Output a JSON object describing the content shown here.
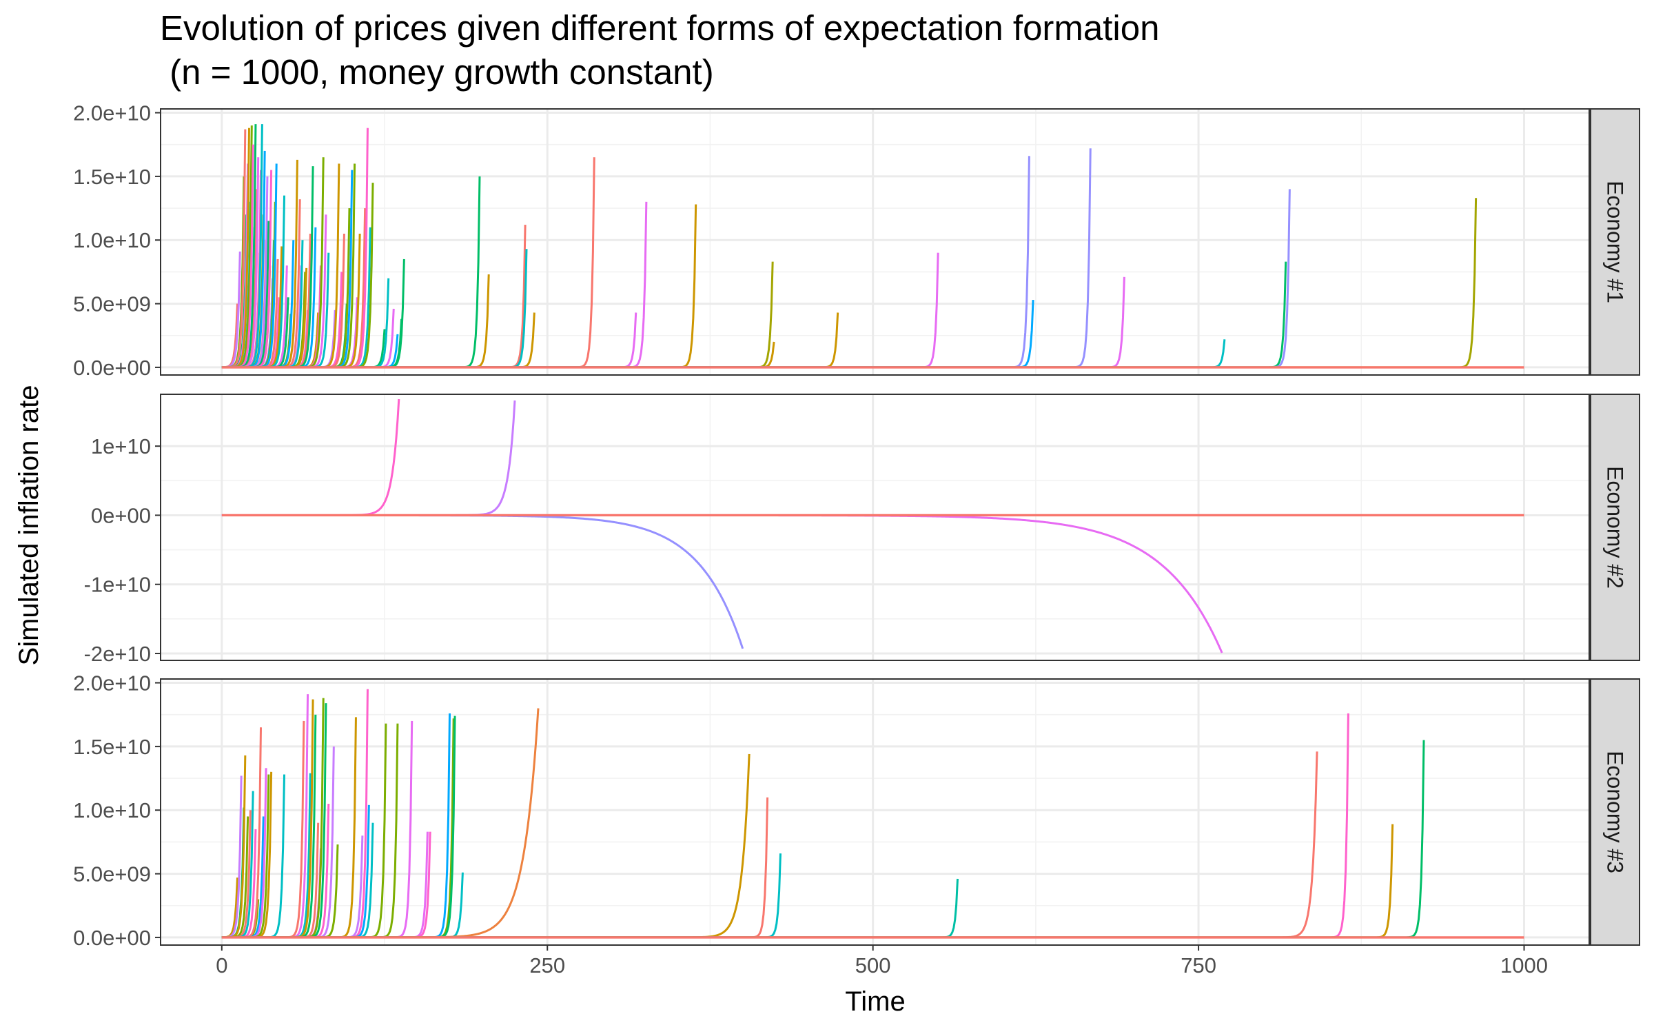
{
  "chart_data": {
    "type": "line",
    "title": "Evolution of prices given different forms of expectation formation",
    "subtitle": " (n = 1000, money growth constant)",
    "xlabel": "Time",
    "ylabel": "Simulated inflation rate",
    "xlim": [
      -47,
      1050
    ],
    "x_ticks": [
      0,
      250,
      500,
      750,
      1000
    ],
    "x_tick_labels": [
      "0",
      "250",
      "500",
      "750",
      "1000"
    ],
    "grid": true,
    "legend": "none",
    "facets": [
      {
        "label": "Economy #1",
        "ylim": [
          -600000000.0,
          20300000000.0
        ],
        "y_ticks": [
          0,
          5000000000.0,
          10000000000.0,
          15000000000.0,
          20000000000.0
        ],
        "y_tick_labels": [
          "0.0e+00",
          "5.0e+09",
          "1.0e+10",
          "1.5e+10",
          "2.0e+10"
        ],
        "spikes": [
          {
            "x": 12,
            "peak": 5000000000.0,
            "color": "#F8766D"
          },
          {
            "x": 14,
            "peak": 9100000000.0,
            "color": "#C77CFF"
          },
          {
            "x": 16,
            "peak": 8000000000.0,
            "color": "#00A9FF"
          },
          {
            "x": 17,
            "peak": 15000000000.0,
            "color": "#7CAE00"
          },
          {
            "x": 18,
            "peak": 18700000000.0,
            "color": "#F8766D"
          },
          {
            "x": 19,
            "peak": 12000000000.0,
            "color": "#00BE67"
          },
          {
            "x": 20,
            "peak": 16000000000.0,
            "color": "#E76BF3"
          },
          {
            "x": 21,
            "peak": 18800000000.0,
            "color": "#CD9600"
          },
          {
            "x": 22,
            "peak": 13000000000.0,
            "color": "#00BFC4"
          },
          {
            "x": 23,
            "peak": 19000000000.0,
            "color": "#7CAE00"
          },
          {
            "x": 24,
            "peak": 17500000000.0,
            "color": "#FF61CC"
          },
          {
            "x": 25,
            "peak": 11000000000.0,
            "color": "#00A9FF"
          },
          {
            "x": 26,
            "peak": 19100000000.0,
            "color": "#00BE67"
          },
          {
            "x": 27,
            "peak": 14000000000.0,
            "color": "#F8766D"
          },
          {
            "x": 28,
            "peak": 16500000000.0,
            "color": "#E76BF3"
          },
          {
            "x": 29,
            "peak": 9000000000.0,
            "color": "#CD9600"
          },
          {
            "x": 30,
            "peak": 15500000000.0,
            "color": "#FF61CC"
          },
          {
            "x": 31,
            "peak": 19100000000.0,
            "color": "#00BFC4"
          },
          {
            "x": 32,
            "peak": 12000000000.0,
            "color": "#7CAE00"
          },
          {
            "x": 33,
            "peak": 17000000000.0,
            "color": "#00A9FF"
          },
          {
            "x": 34,
            "peak": 10000000000.0,
            "color": "#F8766D"
          },
          {
            "x": 35,
            "peak": 15000000000.0,
            "color": "#C77CFF"
          },
          {
            "x": 36,
            "peak": 11500000000.0,
            "color": "#00BE67"
          },
          {
            "x": 37,
            "peak": 8000000000.0,
            "color": "#CD9600"
          },
          {
            "x": 38,
            "peak": 15500000000.0,
            "color": "#FF61CC"
          },
          {
            "x": 39,
            "peak": 7000000000.0,
            "color": "#E76BF3"
          },
          {
            "x": 40,
            "peak": 10000000000.0,
            "color": "#00BFC4"
          },
          {
            "x": 41,
            "peak": 13000000000.0,
            "color": "#7CAE00"
          },
          {
            "x": 42,
            "peak": 16000000000.0,
            "color": "#00A9FF"
          },
          {
            "x": 43,
            "peak": 8500000000.0,
            "color": "#F8766D"
          },
          {
            "x": 44,
            "peak": 5500000000.0,
            "color": "#FF61CC"
          },
          {
            "x": 46,
            "peak": 9500000000.0,
            "color": "#CD9600"
          },
          {
            "x": 48,
            "peak": 13500000000.0,
            "color": "#00BFC4"
          },
          {
            "x": 50,
            "peak": 8000000000.0,
            "color": "#E76BF3"
          },
          {
            "x": 51,
            "peak": 5500000000.0,
            "color": "#00BE67"
          },
          {
            "x": 53,
            "peak": 4200000000.0,
            "color": "#7CAE00"
          },
          {
            "x": 55,
            "peak": 10000000000.0,
            "color": "#00A9FF"
          },
          {
            "x": 56,
            "peak": 4500000000.0,
            "color": "#FF61CC"
          },
          {
            "x": 58,
            "peak": 16300000000.0,
            "color": "#CD9600"
          },
          {
            "x": 60,
            "peak": 13200000000.0,
            "color": "#F8766D"
          },
          {
            "x": 61,
            "peak": 8000000000.0,
            "color": "#C77CFF"
          },
          {
            "x": 62,
            "peak": 10000000000.0,
            "color": "#00BFC4"
          },
          {
            "x": 64,
            "peak": 7500000000.0,
            "color": "#7CAE00"
          },
          {
            "x": 65,
            "peak": 7800000000.0,
            "color": "#CD9600"
          },
          {
            "x": 66,
            "peak": 4500000000.0,
            "color": "#E76BF3"
          },
          {
            "x": 68,
            "peak": 10500000000.0,
            "color": "#F8766D"
          },
          {
            "x": 70,
            "peak": 15800000000.0,
            "color": "#00BE67"
          },
          {
            "x": 72,
            "peak": 11000000000.0,
            "color": "#00A9FF"
          },
          {
            "x": 74,
            "peak": 4300000000.0,
            "color": "#CD9600"
          },
          {
            "x": 76,
            "peak": 8000000000.0,
            "color": "#FF61CC"
          },
          {
            "x": 78,
            "peak": 16500000000.0,
            "color": "#7CAE00"
          },
          {
            "x": 80,
            "peak": 12000000000.0,
            "color": "#E76BF3"
          },
          {
            "x": 82,
            "peak": 9000000000.0,
            "color": "#00BFC4"
          },
          {
            "x": 87,
            "peak": 4500000000.0,
            "color": "#C77CFF"
          },
          {
            "x": 90,
            "peak": 16000000000.0,
            "color": "#CD9600"
          },
          {
            "x": 92,
            "peak": 7500000000.0,
            "color": "#FF61CC"
          },
          {
            "x": 94,
            "peak": 10500000000.0,
            "color": "#F8766D"
          },
          {
            "x": 96,
            "peak": 5000000000.0,
            "color": "#00BE67"
          },
          {
            "x": 98,
            "peak": 12500000000.0,
            "color": "#7CAE00"
          },
          {
            "x": 100,
            "peak": 15500000000.0,
            "color": "#00A9FF"
          },
          {
            "x": 102,
            "peak": 16000000000.0,
            "color": "#7CAE00"
          },
          {
            "x": 104,
            "peak": 5500000000.0,
            "color": "#E76BF3"
          },
          {
            "x": 106,
            "peak": 10500000000.0,
            "color": "#CD9600"
          },
          {
            "x": 110,
            "peak": 12500000000.0,
            "color": "#F8766D"
          },
          {
            "x": 112,
            "peak": 18800000000.0,
            "color": "#FF61CC"
          },
          {
            "x": 114,
            "peak": 11000000000.0,
            "color": "#00BFC4"
          },
          {
            "x": 116,
            "peak": 14500000000.0,
            "color": "#7CAE00"
          },
          {
            "x": 125,
            "peak": 3000000000.0,
            "color": "#00BE67"
          },
          {
            "x": 128,
            "peak": 7000000000.0,
            "color": "#00BFC4"
          },
          {
            "x": 132,
            "peak": 4600000000.0,
            "color": "#E76BF3"
          },
          {
            "x": 135,
            "peak": 2600000000.0,
            "color": "#00A9FF"
          },
          {
            "x": 138,
            "peak": 3800000000.0,
            "color": "#00BE67"
          },
          {
            "x": 140,
            "peak": 8500000000.0,
            "color": "#00BE67"
          },
          {
            "x": 198,
            "peak": 15000000000.0,
            "color": "#00BE67"
          },
          {
            "x": 205,
            "peak": 7300000000.0,
            "color": "#CD9600"
          },
          {
            "x": 233,
            "peak": 11200000000.0,
            "color": "#F8766D"
          },
          {
            "x": 234,
            "peak": 9300000000.0,
            "color": "#00BFC4"
          },
          {
            "x": 240,
            "peak": 4300000000.0,
            "color": "#CD9600"
          },
          {
            "x": 286,
            "peak": 16500000000.0,
            "color": "#F8766D"
          },
          {
            "x": 318,
            "peak": 4300000000.0,
            "color": "#E76BF3"
          },
          {
            "x": 326,
            "peak": 13000000000.0,
            "color": "#E76BF3"
          },
          {
            "x": 364,
            "peak": 12800000000.0,
            "color": "#CD9600"
          },
          {
            "x": 423,
            "peak": 8300000000.0,
            "color": "#A3A500"
          },
          {
            "x": 424,
            "peak": 2000000000.0,
            "color": "#CD9600"
          },
          {
            "x": 473,
            "peak": 4300000000.0,
            "color": "#CD9600"
          },
          {
            "x": 550,
            "peak": 9000000000.0,
            "color": "#E76BF3"
          },
          {
            "x": 620,
            "peak": 16600000000.0,
            "color": "#9590FF"
          },
          {
            "x": 623,
            "peak": 5300000000.0,
            "color": "#00A9FF"
          },
          {
            "x": 667,
            "peak": 17200000000.0,
            "color": "#9590FF"
          },
          {
            "x": 693,
            "peak": 7100000000.0,
            "color": "#E76BF3"
          },
          {
            "x": 770,
            "peak": 2200000000.0,
            "color": "#00BFC4"
          },
          {
            "x": 817,
            "peak": 8300000000.0,
            "color": "#00BE67"
          },
          {
            "x": 820,
            "peak": 14000000000.0,
            "color": "#9590FF"
          },
          {
            "x": 963,
            "peak": 13300000000.0,
            "color": "#A3A500"
          }
        ]
      },
      {
        "label": "Economy #2",
        "ylim": [
          -21000000000.0,
          17500000000.0
        ],
        "y_ticks": [
          -20000000000.0,
          -10000000000.0,
          0,
          10000000000.0
        ],
        "y_tick_labels": [
          "-2e+10",
          "-1e+10",
          "0e+00",
          "1e+10"
        ],
        "spikes": [
          {
            "x": 136,
            "peak": 16800000000.0,
            "color": "#FF61CC",
            "k": 0.2
          },
          {
            "x": 225,
            "peak": 16600000000.0,
            "color": "#C77CFF",
            "k": 0.2
          },
          {
            "x": 400,
            "peak": -19300000000.0,
            "color": "#9590FF",
            "k": 0.03
          },
          {
            "x": 768,
            "peak": -19900000000.0,
            "color": "#E76BF3",
            "k": 0.022
          }
        ]
      },
      {
        "label": "Economy #3",
        "ylim": [
          -600000000.0,
          20300000000.0
        ],
        "y_ticks": [
          0,
          5000000000.0,
          10000000000.0,
          15000000000.0,
          20000000000.0
        ],
        "y_tick_labels": [
          "0.0e+00",
          "5.0e+09",
          "1.0e+10",
          "1.5e+10",
          "2.0e+10"
        ],
        "spikes": [
          {
            "x": 12,
            "peak": 4700000000.0,
            "color": "#CD9600"
          },
          {
            "x": 15,
            "peak": 12700000000.0,
            "color": "#C77CFF"
          },
          {
            "x": 17,
            "peak": 10200000000.0,
            "color": "#00BE67"
          },
          {
            "x": 18,
            "peak": 14300000000.0,
            "color": "#CD9600"
          },
          {
            "x": 20,
            "peak": 9500000000.0,
            "color": "#7CAE00"
          },
          {
            "x": 22,
            "peak": 10000000000.0,
            "color": "#F8766D"
          },
          {
            "x": 24,
            "peak": 11500000000.0,
            "color": "#00BFC4"
          },
          {
            "x": 26,
            "peak": 8500000000.0,
            "color": "#FF61CC"
          },
          {
            "x": 28,
            "peak": 3000000000.0,
            "color": "#7CAE00"
          },
          {
            "x": 30,
            "peak": 16500000000.0,
            "color": "#F8766D"
          },
          {
            "x": 32,
            "peak": 9500000000.0,
            "color": "#00A9FF"
          },
          {
            "x": 34,
            "peak": 13300000000.0,
            "color": "#E76BF3"
          },
          {
            "x": 36,
            "peak": 12800000000.0,
            "color": "#7CAE00"
          },
          {
            "x": 38,
            "peak": 13000000000.0,
            "color": "#CD9600"
          },
          {
            "x": 48,
            "peak": 12800000000.0,
            "color": "#00BFC4"
          },
          {
            "x": 63,
            "peak": 17000000000.0,
            "color": "#F8766D"
          },
          {
            "x": 66,
            "peak": 19100000000.0,
            "color": "#E76BF3"
          },
          {
            "x": 68,
            "peak": 12900000000.0,
            "color": "#00BFC4"
          },
          {
            "x": 70,
            "peak": 18700000000.0,
            "color": "#CD9600"
          },
          {
            "x": 72,
            "peak": 17500000000.0,
            "color": "#00BE67"
          },
          {
            "x": 74,
            "peak": 9000000000.0,
            "color": "#F8766D"
          },
          {
            "x": 76,
            "peak": 7000000000.0,
            "color": "#E76BF3"
          },
          {
            "x": 78,
            "peak": 18800000000.0,
            "color": "#7CAE00"
          },
          {
            "x": 80,
            "peak": 18400000000.0,
            "color": "#00BE67"
          },
          {
            "x": 82,
            "peak": 10500000000.0,
            "color": "#FF61CC"
          },
          {
            "x": 86,
            "peak": 15000000000.0,
            "color": "#C77CFF"
          },
          {
            "x": 89,
            "peak": 7300000000.0,
            "color": "#7CAE00"
          },
          {
            "x": 103,
            "peak": 17300000000.0,
            "color": "#CD9600"
          },
          {
            "x": 108,
            "peak": 8000000000.0,
            "color": "#C77CFF"
          },
          {
            "x": 112,
            "peak": 19500000000.0,
            "color": "#FF61CC"
          },
          {
            "x": 113,
            "peak": 10400000000.0,
            "color": "#00A9FF"
          },
          {
            "x": 116,
            "peak": 9000000000.0,
            "color": "#00BFC4"
          },
          {
            "x": 126,
            "peak": 16800000000.0,
            "color": "#7CAE00"
          },
          {
            "x": 135,
            "peak": 16800000000.0,
            "color": "#7CAE00"
          },
          {
            "x": 146,
            "peak": 17000000000.0,
            "color": "#E76BF3"
          },
          {
            "x": 158,
            "peak": 8300000000.0,
            "color": "#E76BF3"
          },
          {
            "x": 160,
            "peak": 8300000000.0,
            "color": "#FF61CC"
          },
          {
            "x": 175,
            "peak": 17600000000.0,
            "color": "#00A9FF"
          },
          {
            "x": 178,
            "peak": 17200000000.0,
            "color": "#7CAE00"
          },
          {
            "x": 179,
            "peak": 17400000000.0,
            "color": "#00BE67"
          },
          {
            "x": 185,
            "peak": 5100000000.0,
            "color": "#00BFC4"
          },
          {
            "x": 243,
            "peak": 18000000000.0,
            "color": "#ED813E",
            "k": 0.09
          },
          {
            "x": 405,
            "peak": 14400000000.0,
            "color": "#CD9600",
            "k": 0.18
          },
          {
            "x": 419,
            "peak": 11000000000.0,
            "color": "#F8766D"
          },
          {
            "x": 429,
            "peak": 6600000000.0,
            "color": "#00BFC4"
          },
          {
            "x": 565,
            "peak": 4600000000.0,
            "color": "#00BFA5"
          },
          {
            "x": 841,
            "peak": 14600000000.0,
            "color": "#F8766D",
            "k": 0.3
          },
          {
            "x": 865,
            "peak": 17600000000.0,
            "color": "#FF61CC"
          },
          {
            "x": 899,
            "peak": 8900000000.0,
            "color": "#CD9600"
          },
          {
            "x": 923,
            "peak": 15500000000.0,
            "color": "#00BE67"
          }
        ]
      }
    ]
  }
}
